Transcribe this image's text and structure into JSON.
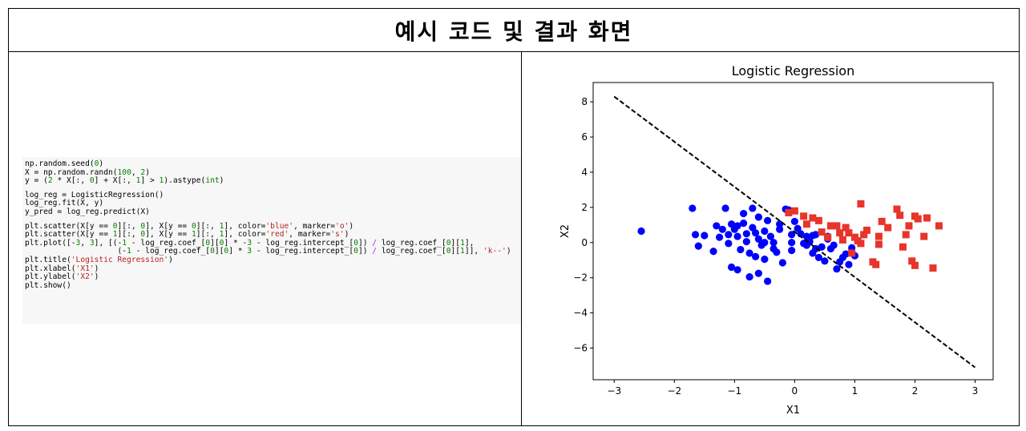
{
  "header": {
    "title": "예시 코드 및 결과 화면"
  },
  "code": {
    "lines": [
      [
        {
          "t": "np.random.seed("
        },
        {
          "t": "0",
          "c": "n"
        },
        {
          "t": ")"
        }
      ],
      [
        {
          "t": "X = np.random.randn("
        },
        {
          "t": "100",
          "c": "n"
        },
        {
          "t": ", "
        },
        {
          "t": "2",
          "c": "n"
        },
        {
          "t": ")"
        }
      ],
      [
        {
          "t": "y = ("
        },
        {
          "t": "2",
          "c": "n"
        },
        {
          "t": " * X[:, "
        },
        {
          "t": "0",
          "c": "n"
        },
        {
          "t": "] + X[:, "
        },
        {
          "t": "1",
          "c": "n"
        },
        {
          "t": "] > "
        },
        {
          "t": "1",
          "c": "n"
        },
        {
          "t": ").astype("
        },
        {
          "t": "int",
          "c": "n"
        },
        {
          "t": ")"
        }
      ],
      [],
      [
        {
          "t": "log_reg = LogisticRegression()"
        }
      ],
      [
        {
          "t": "log_reg.fit(X, y)"
        }
      ],
      [
        {
          "t": "y_pred = log_reg.predict(X)"
        }
      ],
      [],
      [
        {
          "t": "plt.scatter(X[y == "
        },
        {
          "t": "0",
          "c": "n"
        },
        {
          "t": "][:, "
        },
        {
          "t": "0",
          "c": "n"
        },
        {
          "t": "], X[y == "
        },
        {
          "t": "0",
          "c": "n"
        },
        {
          "t": "][:, "
        },
        {
          "t": "1",
          "c": "n"
        },
        {
          "t": "], color="
        },
        {
          "t": "'blue'",
          "c": "s"
        },
        {
          "t": ", marker="
        },
        {
          "t": "'o'",
          "c": "s"
        },
        {
          "t": ")"
        }
      ],
      [
        {
          "t": "plt.scatter(X[y == "
        },
        {
          "t": "1",
          "c": "n"
        },
        {
          "t": "][:, "
        },
        {
          "t": "0",
          "c": "n"
        },
        {
          "t": "], X[y == "
        },
        {
          "t": "1",
          "c": "n"
        },
        {
          "t": "][:, "
        },
        {
          "t": "1",
          "c": "n"
        },
        {
          "t": "], color="
        },
        {
          "t": "'red'",
          "c": "s"
        },
        {
          "t": ", marker="
        },
        {
          "t": "'s'",
          "c": "s"
        },
        {
          "t": ")"
        }
      ],
      [
        {
          "t": "plt.plot([-"
        },
        {
          "t": "3",
          "c": "n"
        },
        {
          "t": ", "
        },
        {
          "t": "3",
          "c": "n"
        },
        {
          "t": "], [(-"
        },
        {
          "t": "1",
          "c": "n"
        },
        {
          "t": " - log_reg.coef_["
        },
        {
          "t": "0",
          "c": "n"
        },
        {
          "t": "]["
        },
        {
          "t": "0",
          "c": "n"
        },
        {
          "t": "] * -"
        },
        {
          "t": "3",
          "c": "n"
        },
        {
          "t": " - log_reg.intercept_["
        },
        {
          "t": "0",
          "c": "n"
        },
        {
          "t": "]) "
        },
        {
          "t": "/",
          "c": "o"
        },
        {
          "t": " log_reg.coef_["
        },
        {
          "t": "0",
          "c": "n"
        },
        {
          "t": "]["
        },
        {
          "t": "1",
          "c": "n"
        },
        {
          "t": "],"
        }
      ],
      [
        {
          "t": "                    (-"
        },
        {
          "t": "1",
          "c": "n"
        },
        {
          "t": " - log_reg.coef_["
        },
        {
          "t": "0",
          "c": "n"
        },
        {
          "t": "]["
        },
        {
          "t": "0",
          "c": "n"
        },
        {
          "t": "] * "
        },
        {
          "t": "3",
          "c": "n"
        },
        {
          "t": " - log_reg.intercept_["
        },
        {
          "t": "0",
          "c": "n"
        },
        {
          "t": "]) "
        },
        {
          "t": "/",
          "c": "o"
        },
        {
          "t": " log_reg.coef_["
        },
        {
          "t": "0",
          "c": "n"
        },
        {
          "t": "]["
        },
        {
          "t": "1",
          "c": "n"
        },
        {
          "t": "]], "
        },
        {
          "t": "'k--'",
          "c": "s"
        },
        {
          "t": ")"
        }
      ],
      [
        {
          "t": "plt.title("
        },
        {
          "t": "'Logistic Regression'",
          "c": "s"
        },
        {
          "t": ")"
        }
      ],
      [
        {
          "t": "plt.xlabel("
        },
        {
          "t": "'X1'",
          "c": "s"
        },
        {
          "t": ")"
        }
      ],
      [
        {
          "t": "plt.ylabel("
        },
        {
          "t": "'X2'",
          "c": "s"
        },
        {
          "t": ")"
        }
      ],
      [
        {
          "t": "plt.show()"
        }
      ]
    ]
  },
  "chart_data": {
    "type": "scatter",
    "title": "Logistic Regression",
    "xlabel": "X1",
    "ylabel": "X2",
    "xlim": [
      -3.35,
      3.3
    ],
    "ylim": [
      -7.8,
      9.1
    ],
    "xticks": [
      -3,
      -2,
      -1,
      0,
      1,
      2,
      3
    ],
    "yticks": [
      -6,
      -4,
      -2,
      0,
      2,
      4,
      6,
      8
    ],
    "grid": false,
    "series": [
      {
        "marker": "circle",
        "color": "#0000ff",
        "points": [
          [
            -2.55,
            0.65
          ],
          [
            -1.7,
            1.95
          ],
          [
            -1.65,
            0.45
          ],
          [
            -1.6,
            -0.2
          ],
          [
            -1.5,
            0.4
          ],
          [
            -1.35,
            -0.5
          ],
          [
            -1.3,
            0.95
          ],
          [
            -1.25,
            0.3
          ],
          [
            -1.2,
            0.75
          ],
          [
            -1.15,
            1.95
          ],
          [
            -1.1,
            0.45
          ],
          [
            -1.1,
            -0.05
          ],
          [
            -1.05,
            1.05
          ],
          [
            -1.05,
            -1.4
          ],
          [
            -1.0,
            0.75
          ],
          [
            -0.95,
            0.35
          ],
          [
            -0.95,
            -1.55
          ],
          [
            -0.9,
            -0.4
          ],
          [
            -0.85,
            1.65
          ],
          [
            -0.85,
            1.1
          ],
          [
            -0.8,
            0.5
          ],
          [
            -0.8,
            0.05
          ],
          [
            -0.75,
            -0.6
          ],
          [
            -0.75,
            -1.95
          ],
          [
            -0.7,
            0.85
          ],
          [
            -0.7,
            1.95
          ],
          [
            -0.65,
            0.55
          ],
          [
            -0.65,
            -0.8
          ],
          [
            -0.6,
            1.45
          ],
          [
            -0.6,
            0.2
          ],
          [
            -0.6,
            -1.75
          ],
          [
            -0.55,
            -0.15
          ],
          [
            -0.5,
            0.65
          ],
          [
            -0.5,
            0.0
          ],
          [
            -0.5,
            -0.95
          ],
          [
            -0.45,
            -2.2
          ],
          [
            -0.45,
            1.25
          ],
          [
            -0.4,
            0.35
          ],
          [
            -0.35,
            -0.35
          ],
          [
            -0.35,
            0.0
          ],
          [
            -0.3,
            -0.55
          ],
          [
            -0.25,
            1.05
          ],
          [
            -0.2,
            -1.15
          ],
          [
            -0.15,
            1.9
          ],
          [
            -0.1,
            1.85
          ],
          [
            -0.05,
            0.45
          ],
          [
            -0.05,
            -0.45
          ],
          [
            -0.05,
            0.0
          ],
          [
            0.0,
            1.2
          ],
          [
            0.05,
            0.8
          ],
          [
            0.1,
            0.5
          ],
          [
            0.15,
            -0.05
          ],
          [
            0.2,
            0.35
          ],
          [
            0.2,
            -0.15
          ],
          [
            0.25,
            0.05
          ],
          [
            0.3,
            0.4
          ],
          [
            0.3,
            -0.6
          ],
          [
            0.35,
            -0.35
          ],
          [
            0.35,
            0.45
          ],
          [
            0.45,
            -0.25
          ],
          [
            0.5,
            -1.05
          ],
          [
            0.55,
            0.35
          ],
          [
            0.6,
            -0.35
          ],
          [
            0.65,
            -0.15
          ],
          [
            0.7,
            -1.5
          ],
          [
            0.75,
            -1.1
          ],
          [
            0.8,
            -0.85
          ],
          [
            0.85,
            -0.65
          ],
          [
            0.9,
            -1.25
          ],
          [
            0.95,
            -0.3
          ],
          [
            1.0,
            -0.75
          ],
          [
            0.4,
            -0.85
          ],
          [
            -0.25,
            0.75
          ],
          [
            -0.95,
            0.95
          ],
          [
            0.55,
            0.2
          ]
        ]
      },
      {
        "marker": "square",
        "color": "#e8342a",
        "points": [
          [
            -0.1,
            1.7
          ],
          [
            0.0,
            1.8
          ],
          [
            0.15,
            1.5
          ],
          [
            0.2,
            1.05
          ],
          [
            0.3,
            1.4
          ],
          [
            0.4,
            1.25
          ],
          [
            0.45,
            0.6
          ],
          [
            0.55,
            0.3
          ],
          [
            0.7,
            0.95
          ],
          [
            0.75,
            0.55
          ],
          [
            0.8,
            0.15
          ],
          [
            0.85,
            0.85
          ],
          [
            0.9,
            0.55
          ],
          [
            0.95,
            -0.6
          ],
          [
            1.0,
            0.3
          ],
          [
            1.05,
            0.1
          ],
          [
            1.1,
            -0.05
          ],
          [
            1.1,
            2.2
          ],
          [
            1.15,
            0.45
          ],
          [
            1.2,
            0.7
          ],
          [
            1.3,
            -1.1
          ],
          [
            1.35,
            -1.25
          ],
          [
            1.4,
            0.35
          ],
          [
            1.4,
            -0.1
          ],
          [
            1.45,
            1.2
          ],
          [
            1.55,
            0.85
          ],
          [
            1.7,
            1.9
          ],
          [
            1.75,
            1.55
          ],
          [
            1.8,
            -0.25
          ],
          [
            1.85,
            0.45
          ],
          [
            1.9,
            0.95
          ],
          [
            1.95,
            -1.05
          ],
          [
            2.0,
            -1.3
          ],
          [
            2.0,
            1.5
          ],
          [
            2.05,
            1.35
          ],
          [
            2.2,
            1.4
          ],
          [
            2.3,
            -1.45
          ],
          [
            2.4,
            0.95
          ],
          [
            2.15,
            0.35
          ],
          [
            0.6,
            0.95
          ]
        ]
      },
      {
        "type": "line",
        "style": "dashed",
        "color": "#000000",
        "points": [
          [
            -3,
            8.3
          ],
          [
            3,
            -7.1
          ]
        ]
      }
    ]
  }
}
